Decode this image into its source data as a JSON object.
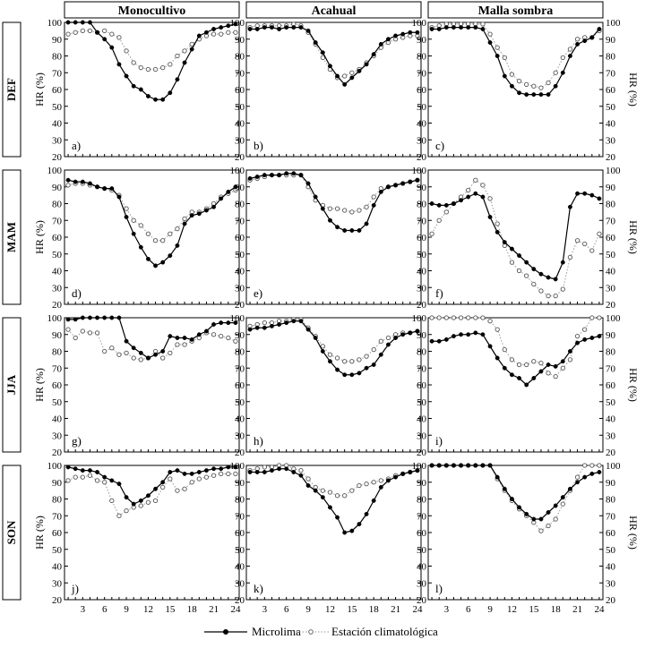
{
  "chart_data": {
    "type": "line",
    "y_axis_label": "HR (%)",
    "ylim": [
      20,
      100
    ],
    "y_ticks": [
      20,
      30,
      40,
      50,
      60,
      70,
      80,
      90,
      100
    ],
    "x": [
      1,
      2,
      3,
      4,
      5,
      6,
      7,
      8,
      9,
      10,
      11,
      12,
      13,
      14,
      15,
      16,
      17,
      18,
      19,
      20,
      21,
      22,
      23,
      24
    ],
    "x_ticks": [
      3,
      6,
      9,
      12,
      15,
      18,
      21,
      24
    ],
    "columns": [
      "Monocultivo",
      "Acahual",
      "Malla sombra"
    ],
    "rows": [
      "DEF",
      "MAM",
      "JJA",
      "SON"
    ],
    "legend": [
      "Microlima",
      "Estación climatológica"
    ],
    "panels": [
      {
        "label": "a)",
        "row": 0,
        "col": 0,
        "Microlima": [
          100,
          100,
          100,
          100,
          94,
          90,
          85,
          75,
          68,
          62,
          60,
          56,
          54,
          54,
          58,
          66,
          76,
          84,
          92,
          94,
          96,
          97,
          98,
          99
        ],
        "Estacion": [
          93,
          94,
          95,
          95,
          94,
          95,
          93,
          91,
          83,
          76,
          73,
          72,
          72,
          73,
          75,
          80,
          83,
          87,
          90,
          92,
          93,
          93,
          94,
          94
        ]
      },
      {
        "label": "b)",
        "row": 0,
        "col": 1,
        "Microlima": [
          96,
          96,
          97,
          97,
          96,
          97,
          97,
          97,
          95,
          88,
          82,
          74,
          68,
          63,
          67,
          71,
          75,
          81,
          87,
          90,
          92,
          93,
          94,
          94
        ],
        "Estacion": [
          97,
          98,
          98,
          98,
          98,
          98,
          99,
          98,
          94,
          87,
          79,
          72,
          67,
          68,
          70,
          72,
          76,
          80,
          85,
          88,
          90,
          91,
          92,
          92
        ]
      },
      {
        "label": "c)",
        "row": 0,
        "col": 2,
        "Microlima": [
          96,
          96,
          97,
          97,
          97,
          97,
          97,
          96,
          88,
          80,
          68,
          62,
          58,
          57,
          57,
          57,
          57,
          62,
          70,
          80,
          87,
          89,
          91,
          96
        ],
        "Estacion": [
          97,
          98,
          99,
          99,
          99,
          99,
          99,
          99,
          93,
          85,
          79,
          69,
          65,
          63,
          62,
          61,
          64,
          70,
          79,
          84,
          90,
          91,
          91,
          95
        ]
      },
      {
        "label": "d)",
        "row": 1,
        "col": 0,
        "Microlima": [
          94,
          93,
          93,
          92,
          90,
          89,
          89,
          84,
          72,
          62,
          54,
          47,
          43,
          45,
          49,
          55,
          68,
          73,
          74,
          76,
          78,
          83,
          87,
          90
        ],
        "Estacion": [
          91,
          92,
          92,
          91,
          90,
          89,
          88,
          85,
          77,
          70,
          67,
          62,
          58,
          58,
          62,
          65,
          71,
          75,
          75,
          77,
          80,
          84,
          86,
          88
        ]
      },
      {
        "label": "e)",
        "row": 1,
        "col": 1,
        "Microlima": [
          95,
          96,
          97,
          97,
          97,
          98,
          98,
          97,
          92,
          84,
          77,
          70,
          66,
          64,
          64,
          64,
          68,
          79,
          87,
          90,
          91,
          92,
          93,
          94
        ],
        "Estacion": [
          94,
          95,
          96,
          97,
          97,
          97,
          97,
          97,
          90,
          82,
          79,
          77,
          77,
          76,
          75,
          76,
          78,
          84,
          89,
          90,
          91,
          92,
          93,
          94
        ]
      },
      {
        "label": "f)",
        "row": 1,
        "col": 2,
        "Microlima": [
          80,
          79,
          79,
          80,
          82,
          84,
          86,
          84,
          72,
          63,
          57,
          53,
          49,
          45,
          41,
          38,
          36,
          35,
          45,
          78,
          86,
          86,
          85,
          83
        ],
        "Estacion": [
          62,
          70,
          75,
          80,
          84,
          88,
          94,
          91,
          83,
          68,
          55,
          45,
          40,
          37,
          32,
          28,
          25,
          25,
          29,
          48,
          58,
          56,
          52,
          62
        ]
      },
      {
        "label": "g)",
        "row": 2,
        "col": 0,
        "Microlima": [
          99,
          99,
          100,
          100,
          100,
          100,
          100,
          100,
          86,
          82,
          79,
          76,
          78,
          80,
          89,
          88,
          88,
          87,
          90,
          92,
          96,
          97,
          97,
          97
        ],
        "Estacion": [
          93,
          88,
          92,
          91,
          91,
          80,
          82,
          78,
          79,
          76,
          75,
          76,
          80,
          76,
          79,
          84,
          84,
          86,
          88,
          91,
          90,
          89,
          88,
          86
        ]
      },
      {
        "label": "h)",
        "row": 2,
        "col": 1,
        "Microlima": [
          93,
          94,
          94,
          95,
          96,
          97,
          98,
          98,
          93,
          88,
          80,
          74,
          69,
          66,
          66,
          67,
          70,
          72,
          78,
          84,
          88,
          90,
          91,
          92
        ],
        "Estacion": [
          95,
          96,
          97,
          97,
          98,
          98,
          99,
          99,
          94,
          89,
          83,
          78,
          76,
          74,
          74,
          75,
          77,
          81,
          86,
          88,
          90,
          91,
          91,
          92
        ]
      },
      {
        "label": "i)",
        "row": 2,
        "col": 2,
        "Microlima": [
          86,
          86,
          87,
          89,
          90,
          90,
          91,
          90,
          83,
          76,
          70,
          66,
          64,
          60,
          64,
          68,
          72,
          71,
          74,
          80,
          85,
          87,
          88,
          89
        ],
        "Estacion": [
          100,
          100,
          100,
          100,
          100,
          100,
          100,
          100,
          98,
          93,
          81,
          75,
          72,
          72,
          74,
          73,
          67,
          65,
          70,
          75,
          89,
          93,
          100,
          100
        ]
      },
      {
        "label": "j)",
        "row": 3,
        "col": 0,
        "Microlima": [
          99,
          98,
          97,
          97,
          96,
          93,
          91,
          89,
          81,
          77,
          79,
          82,
          86,
          90,
          96,
          97,
          95,
          95,
          96,
          97,
          98,
          98,
          99,
          99
        ],
        "Estacion": [
          91,
          93,
          93,
          94,
          91,
          90,
          79,
          70,
          73,
          75,
          76,
          78,
          79,
          87,
          92,
          85,
          86,
          90,
          92,
          93,
          94,
          95,
          95,
          95
        ]
      },
      {
        "label": "k)",
        "row": 3,
        "col": 1,
        "Microlima": [
          96,
          96,
          96,
          97,
          98,
          98,
          96,
          94,
          88,
          85,
          81,
          75,
          69,
          60,
          61,
          65,
          71,
          79,
          87,
          91,
          93,
          95,
          96,
          97
        ],
        "Estacion": [
          97,
          98,
          99,
          99,
          100,
          100,
          98,
          97,
          92,
          87,
          85,
          84,
          82,
          82,
          85,
          88,
          89,
          90,
          91,
          92,
          94,
          95,
          96,
          97
        ]
      },
      {
        "label": "l)",
        "row": 3,
        "col": 2,
        "Microlima": [
          100,
          100,
          100,
          100,
          100,
          100,
          100,
          100,
          100,
          93,
          86,
          80,
          75,
          71,
          68,
          68,
          72,
          76,
          81,
          86,
          90,
          93,
          95,
          96
        ],
        "Estacion": [
          100,
          100,
          100,
          100,
          100,
          100,
          100,
          100,
          100,
          92,
          85,
          79,
          74,
          70,
          66,
          61,
          64,
          68,
          77,
          85,
          93,
          100,
          100,
          100
        ]
      }
    ]
  }
}
